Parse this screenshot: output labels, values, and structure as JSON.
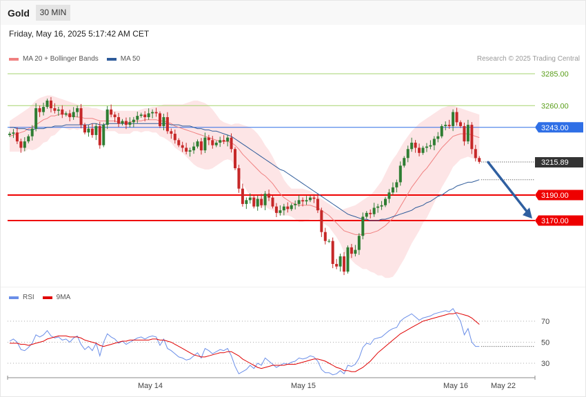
{
  "header": {
    "instrument": "Gold",
    "timeframe": "30 MIN",
    "datetime": "Friday, May 16, 2025 5:17:42 AM CET",
    "copyright": "Research © 2025 Trading Central"
  },
  "legend": {
    "ma20": "MA 20 + Bollinger Bands",
    "ma50": "MA 50",
    "rsi": "RSI",
    "rsi_ma": "9MA"
  },
  "colors": {
    "ma20": "#f08080",
    "bands": "#fde0e2",
    "ma50": "#2e5b9a",
    "up_candle": "#2e7d32",
    "down_candle": "#c62828",
    "resistance_green": "#a5d36f",
    "pivot_blue": "#2f6fe6",
    "support_red": "#ee0000",
    "arrow": "#2f5fa0",
    "last_price": "#333333",
    "rsi_line": "#6a8ee8",
    "rsi_ma_line": "#e00000"
  },
  "chart_data": [
    {
      "type": "candlestick",
      "title": "Gold",
      "timeframe": "30 MIN",
      "x_ticks": [
        "May 14",
        "May 15",
        "May 16",
        "May 22"
      ],
      "ylim": [
        3120,
        3295
      ],
      "levels": [
        {
          "label": "3285.00",
          "value": 3285,
          "kind": "resistance",
          "color": "#a5d36f"
        },
        {
          "label": "3260.00",
          "value": 3260,
          "kind": "resistance",
          "color": "#a5d36f"
        },
        {
          "label": "3243.00",
          "value": 3243,
          "kind": "pivot",
          "color": "#2f6fe6"
        },
        {
          "label": "3215.89",
          "value": 3215.89,
          "kind": "last",
          "color": "#333333"
        },
        {
          "label": "3190.00",
          "value": 3190,
          "kind": "support",
          "color": "#ee0000"
        },
        {
          "label": "3170.00",
          "value": 3170,
          "kind": "support",
          "color": "#ee0000"
        }
      ],
      "projection": {
        "from": 3216,
        "to": 3171,
        "direction": "down"
      },
      "close": [
        3238,
        3239,
        3232,
        3227,
        3232,
        3236,
        3242,
        3258,
        3255,
        3259,
        3264,
        3258,
        3256,
        3257,
        3253,
        3254,
        3251,
        3255,
        3258,
        3245,
        3239,
        3242,
        3237,
        3244,
        3229,
        3245,
        3257,
        3253,
        3251,
        3246,
        3248,
        3245,
        3247,
        3249,
        3252,
        3253,
        3251,
        3254,
        3255,
        3254,
        3244,
        3251,
        3240,
        3238,
        3233,
        3229,
        3227,
        3224,
        3225,
        3228,
        3232,
        3225,
        3235,
        3233,
        3229,
        3231,
        3233,
        3232,
        3235,
        3226,
        3211,
        3195,
        3183,
        3186,
        3188,
        3181,
        3187,
        3182,
        3191,
        3188,
        3181,
        3176,
        3178,
        3181,
        3179,
        3182,
        3183,
        3186,
        3185,
        3186,
        3188,
        3187,
        3178,
        3161,
        3154,
        3154,
        3136,
        3134,
        3142,
        3130,
        3149,
        3144,
        3147,
        3158,
        3173,
        3176,
        3175,
        3180,
        3181,
        3182,
        3187,
        3192,
        3196,
        3200,
        3213,
        3219,
        3226,
        3231,
        3227,
        3223,
        3227,
        3228,
        3229,
        3234,
        3236,
        3244,
        3245,
        3244,
        3255,
        3247,
        3244,
        3232,
        3245,
        3226,
        3219,
        3216
      ],
      "ma20": [
        3236,
        3237,
        3238,
        3239,
        3240,
        3242,
        3243,
        3245,
        3247,
        3249,
        3250,
        3252,
        3252,
        3253,
        3254,
        3253,
        3252,
        3252,
        3251,
        3251,
        3250,
        3250,
        3250,
        3249,
        3248,
        3248,
        3248,
        3248,
        3248,
        3247,
        3247,
        3247,
        3247,
        3248,
        3248,
        3248,
        3249,
        3249,
        3249,
        3249,
        3248,
        3248,
        3247,
        3246,
        3244,
        3243,
        3242,
        3241,
        3240,
        3239,
        3238,
        3237,
        3236,
        3235,
        3234,
        3233,
        3232,
        3232,
        3232,
        3231,
        3229,
        3226,
        3222,
        3219,
        3216,
        3213,
        3210,
        3207,
        3205,
        3202,
        3199,
        3195,
        3191,
        3188,
        3186,
        3184,
        3183,
        3182,
        3182,
        3182,
        3182,
        3181,
        3180,
        3178,
        3176,
        3174,
        3171,
        3168,
        3165,
        3162,
        3161,
        3160,
        3159,
        3159,
        3159,
        3160,
        3160,
        3161,
        3162,
        3164,
        3166,
        3169,
        3172,
        3176,
        3181,
        3186,
        3191,
        3196,
        3200,
        3204,
        3208,
        3211,
        3215,
        3219,
        3223,
        3227,
        3230,
        3233,
        3236,
        3237,
        3238,
        3238,
        3238,
        3237,
        3236,
        3235
      ],
      "ma50": [
        3243,
        3243,
        3242,
        3242,
        3242,
        3241,
        3241,
        3242,
        3242,
        3242,
        3243,
        3243,
        3244,
        3244,
        3244,
        3245,
        3245,
        3245,
        3245,
        3245,
        3245,
        3245,
        3246,
        3246,
        3245,
        3245,
        3246,
        3246,
        3246,
        3246,
        3246,
        3246,
        3246,
        3246,
        3246,
        3246,
        3246,
        3246,
        3246,
        3246,
        3246,
        3246,
        3246,
        3245,
        3245,
        3245,
        3244,
        3244,
        3244,
        3243,
        3242,
        3242,
        3241,
        3241,
        3240,
        3240,
        3239,
        3238,
        3237,
        3236,
        3234,
        3232,
        3230,
        3228,
        3226,
        3224,
        3222,
        3220,
        3218,
        3216,
        3214,
        3212,
        3210,
        3209,
        3207,
        3205,
        3203,
        3201,
        3199,
        3197,
        3195,
        3193,
        3191,
        3189,
        3187,
        3185,
        3183,
        3181,
        3179,
        3177,
        3175,
        3174,
        3173,
        3172,
        3171,
        3171,
        3170,
        3170,
        3170,
        3171,
        3171,
        3172,
        3173,
        3174,
        3175,
        3176,
        3177,
        3178,
        3180,
        3181,
        3182,
        3184,
        3185,
        3187,
        3189,
        3190,
        3192,
        3194,
        3195,
        3197,
        3198,
        3199,
        3200,
        3200,
        3201,
        3202
      ],
      "bb_upper": [
        3248,
        3250,
        3252,
        3254,
        3256,
        3258,
        3261,
        3264,
        3266,
        3267,
        3268,
        3268,
        3267,
        3266,
        3265,
        3264,
        3263,
        3262,
        3261,
        3260,
        3259,
        3259,
        3258,
        3258,
        3257,
        3256,
        3256,
        3256,
        3256,
        3256,
        3256,
        3256,
        3256,
        3256,
        3256,
        3257,
        3258,
        3258,
        3259,
        3259,
        3260,
        3261,
        3261,
        3261,
        3261,
        3261,
        3261,
        3262,
        3263,
        3264,
        3264,
        3263,
        3262,
        3260,
        3257,
        3253,
        3249,
        3247,
        3246,
        3245,
        3246,
        3246,
        3245,
        3244,
        3243,
        3241,
        3238,
        3234,
        3229,
        3225,
        3220,
        3214,
        3208,
        3202,
        3198,
        3195,
        3195,
        3195,
        3195,
        3194,
        3193,
        3191,
        3189,
        3187,
        3185,
        3183,
        3181,
        3179,
        3178,
        3179,
        3180,
        3181,
        3182,
        3184,
        3186,
        3188,
        3190,
        3193,
        3197,
        3201,
        3207,
        3213,
        3218,
        3222,
        3227,
        3232,
        3236,
        3240,
        3243,
        3246,
        3248,
        3250,
        3252,
        3254,
        3256,
        3258,
        3259,
        3260,
        3260,
        3259,
        3258,
        3257,
        3256,
        3255,
        3254,
        3253
      ],
      "bb_lower": [
        3224,
        3224,
        3224,
        3224,
        3224,
        3226,
        3225,
        3226,
        3228,
        3231,
        3232,
        3236,
        3237,
        3240,
        3243,
        3242,
        3241,
        3242,
        3241,
        3242,
        3241,
        3241,
        3242,
        3240,
        3239,
        3240,
        3240,
        3240,
        3240,
        3238,
        3238,
        3238,
        3238,
        3240,
        3240,
        3239,
        3240,
        3240,
        3239,
        3239,
        3236,
        3235,
        3233,
        3231,
        3227,
        3225,
        3223,
        3220,
        3217,
        3214,
        3212,
        3211,
        3210,
        3210,
        3211,
        3213,
        3215,
        3217,
        3218,
        3217,
        3212,
        3206,
        3199,
        3194,
        3189,
        3185,
        3182,
        3180,
        3181,
        3179,
        3178,
        3176,
        3174,
        3174,
        3174,
        3173,
        3171,
        3169,
        3169,
        3170,
        3171,
        3171,
        3171,
        3169,
        3167,
        3165,
        3161,
        3157,
        3152,
        3145,
        3142,
        3139,
        3136,
        3134,
        3132,
        3132,
        3130,
        3129,
        3127,
        3127,
        3125,
        3125,
        3126,
        3130,
        3135,
        3140,
        3146,
        3152,
        3157,
        3162,
        3168,
        3172,
        3178,
        3184,
        3190,
        3196,
        3201,
        3206,
        3212,
        3215,
        3218,
        3219,
        3220,
        3219,
        3218,
        3217
      ]
    },
    {
      "type": "line",
      "title": "RSI",
      "ylim": [
        15,
        85
      ],
      "y_ticks": [
        70,
        50,
        30
      ],
      "series": [
        {
          "name": "RSI",
          "values": [
            51,
            53,
            50,
            43,
            42,
            45,
            49,
            57,
            55,
            57,
            61,
            56,
            54,
            55,
            52,
            53,
            50,
            54,
            56,
            48,
            43,
            46,
            42,
            49,
            37,
            50,
            58,
            55,
            53,
            49,
            51,
            48,
            50,
            52,
            54,
            55,
            53,
            55,
            56,
            55,
            47,
            53,
            44,
            42,
            39,
            36,
            35,
            33,
            34,
            37,
            40,
            35,
            44,
            42,
            39,
            41,
            43,
            42,
            44,
            37,
            27,
            20,
            22,
            24,
            28,
            25,
            30,
            28,
            35,
            32,
            29,
            26,
            28,
            30,
            29,
            31,
            32,
            35,
            34,
            35,
            37,
            36,
            32,
            24,
            21,
            21,
            19,
            20,
            23,
            20,
            28,
            27,
            29,
            35,
            45,
            49,
            48,
            53,
            54,
            55,
            58,
            61,
            63,
            64,
            70,
            73,
            75,
            77,
            74,
            71,
            73,
            74,
            75,
            77,
            78,
            79,
            80,
            79,
            82,
            76,
            70,
            57,
            63,
            50,
            46,
            46
          ]
        },
        {
          "name": "9MA",
          "values": [
            49,
            49,
            49,
            48,
            48,
            47,
            48,
            49,
            50,
            51,
            53,
            54,
            55,
            56,
            56,
            56,
            55,
            55,
            55,
            54,
            52,
            51,
            50,
            49,
            47,
            46,
            47,
            48,
            49,
            50,
            51,
            51,
            52,
            52,
            52,
            52,
            52,
            52,
            53,
            53,
            52,
            52,
            51,
            50,
            48,
            46,
            44,
            42,
            40,
            38,
            37,
            36,
            36,
            37,
            38,
            39,
            40,
            40,
            41,
            41,
            39,
            37,
            34,
            32,
            30,
            28,
            26,
            25,
            26,
            27,
            28,
            28,
            28,
            28,
            29,
            29,
            29,
            30,
            31,
            32,
            33,
            34,
            34,
            33,
            32,
            30,
            28,
            26,
            25,
            23,
            23,
            22,
            22,
            24,
            26,
            29,
            32,
            36,
            40,
            43,
            46,
            49,
            52,
            55,
            58,
            60,
            62,
            64,
            66,
            68,
            70,
            71,
            72,
            73,
            74,
            75,
            76,
            77,
            77,
            78,
            77,
            76,
            75,
            73,
            70,
            67
          ]
        }
      ]
    }
  ]
}
